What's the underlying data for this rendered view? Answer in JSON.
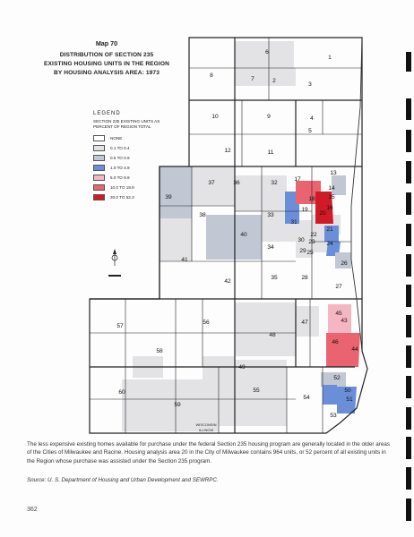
{
  "map_number": "Map 70",
  "title_lines": [
    "DISTRIBUTION OF SECTION 235",
    "EXISTING HOUSING UNITS IN THE REGION",
    "BY HOUSING ANALYSIS AREA:  1973"
  ],
  "legend": {
    "title": "LEGEND",
    "subtitle": "SECTION 235 EXISTING UNITS AS PERCENT OF REGION TOTAL",
    "items": [
      {
        "label": "NONE",
        "color": "#ffffff"
      },
      {
        "label": "0.1  TO  0.4",
        "color": "#e3e3e6"
      },
      {
        "label": "0.5  TO  0.9",
        "color": "#c2c7d4"
      },
      {
        "label": "1.0  TO  4.9",
        "color": "#6a8fd8"
      },
      {
        "label": "5.0  TO  9.9",
        "color": "#f4b6c1"
      },
      {
        "label": "10.0  TO  19.9",
        "color": "#e9646f"
      },
      {
        "label": "20.0  TO  52.3",
        "color": "#d01a26"
      }
    ]
  },
  "area_labels": [
    "1",
    "2",
    "3",
    "4",
    "5",
    "6",
    "7",
    "8",
    "9",
    "10",
    "11",
    "12",
    "13",
    "14",
    "15",
    "16",
    "17",
    "18",
    "19",
    "20",
    "21",
    "22",
    "23",
    "24",
    "25",
    "26",
    "27",
    "28",
    "29",
    "30",
    "31",
    "32",
    "33",
    "34",
    "35",
    "36",
    "37",
    "38",
    "39",
    "40",
    "41",
    "42",
    "43",
    "44",
    "45",
    "46",
    "47",
    "48",
    "49",
    "50",
    "51",
    "52",
    "53",
    "54",
    "55",
    "56",
    "57",
    "58",
    "59",
    "60"
  ],
  "state_line_label": "WISCONSIN\nILLINOIS",
  "caption": "The less expensive existing homes available for purchase under the federal Section 235 housing program are generally located in the older areas of the Cities of Milwaukee and Racine. Housing analysis area 20 in the City of Milwaukee contains 964 units, or 52 percent of all existing units in the Region whose purchase was assisted under the Section 235 program.",
  "source": "Source:  U. S. Department of Housing and Urban Development and SEWRPC.",
  "page_number": "362"
}
